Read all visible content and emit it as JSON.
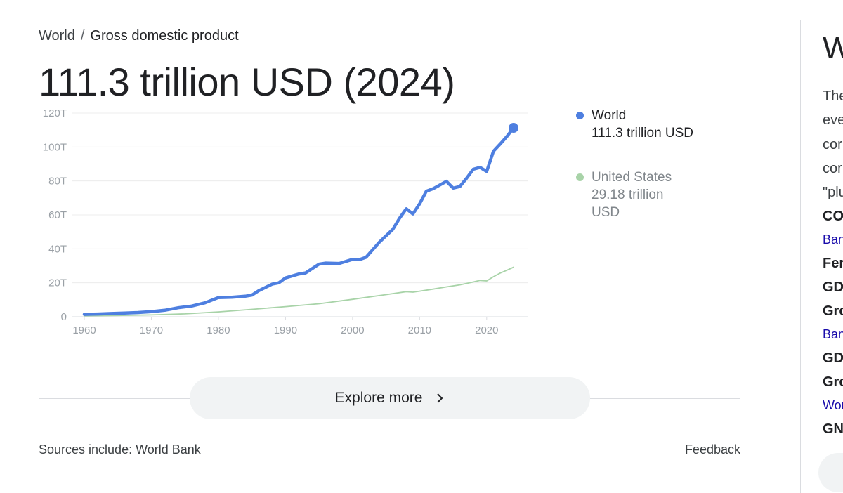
{
  "breadcrumb": {
    "root": "World",
    "separator": "/",
    "current": "Gross domestic product"
  },
  "headline": "111.3 trillion USD (2024)",
  "chart_data": {
    "type": "line",
    "title": "",
    "xlabel": "",
    "ylabel": "",
    "xlim": [
      1960,
      2024
    ],
    "ylim": [
      0,
      120
    ],
    "x_ticks": [
      1960,
      1970,
      1980,
      1990,
      2000,
      2010,
      2020
    ],
    "x_tick_labels": [
      "1960",
      "1970",
      "1980",
      "1990",
      "2000",
      "2010",
      "2020"
    ],
    "y_ticks": [
      0,
      20,
      40,
      60,
      80,
      100,
      120
    ],
    "y_tick_labels": [
      "0",
      "20T",
      "40T",
      "60T",
      "80T",
      "100T",
      "120T"
    ],
    "grid": true,
    "legend_position": "right",
    "series": [
      {
        "name": "World",
        "color": "#4e7fe0",
        "x": [
          1960,
          1962,
          1964,
          1966,
          1968,
          1970,
          1972,
          1974,
          1976,
          1978,
          1980,
          1982,
          1984,
          1985,
          1986,
          1988,
          1989,
          1990,
          1992,
          1993,
          1995,
          1996,
          1998,
          2000,
          2001,
          2002,
          2004,
          2006,
          2007,
          2008,
          2009,
          2010,
          2011,
          2012,
          2014,
          2015,
          2016,
          2017,
          2018,
          2019,
          2020,
          2021,
          2022,
          2023,
          2024
        ],
        "values": [
          1.4,
          1.6,
          1.9,
          2.2,
          2.5,
          3.0,
          3.8,
          5.3,
          6.3,
          8.2,
          11.3,
          11.5,
          12.1,
          12.8,
          15.3,
          19.2,
          20.0,
          22.9,
          25.2,
          25.8,
          31.0,
          31.6,
          31.4,
          33.8,
          33.6,
          35.0,
          44.0,
          51.5,
          58.0,
          63.6,
          60.6,
          66.5,
          74.0,
          75.4,
          79.8,
          75.8,
          76.7,
          81.6,
          86.9,
          88.0,
          85.6,
          97.5,
          101.7,
          106.2,
          111.3
        ],
        "final_label": "111.3 trillion USD",
        "final_marker": true
      },
      {
        "name": "United States",
        "color": "#a8d3a8",
        "x": [
          1960,
          1965,
          1970,
          1975,
          1980,
          1985,
          1990,
          1995,
          2000,
          2005,
          2008,
          2009,
          2010,
          2012,
          2014,
          2016,
          2018,
          2019,
          2020,
          2021,
          2022,
          2023,
          2024
        ],
        "values": [
          0.54,
          0.74,
          1.07,
          1.68,
          2.86,
          4.34,
          5.96,
          7.64,
          10.25,
          13.04,
          14.77,
          14.48,
          15.05,
          16.25,
          17.6,
          18.8,
          20.5,
          21.4,
          21.1,
          23.6,
          25.7,
          27.4,
          29.18
        ],
        "final_label": "29.18 trillion USD"
      }
    ]
  },
  "legend": [
    {
      "name": "World",
      "value": "111.3 trillion USD",
      "color": "#4e7fe0"
    },
    {
      "name": "United States",
      "value": "29.18 trillion USD",
      "color": "#a8d3a8"
    }
  ],
  "explore_button": {
    "label": "Explore more"
  },
  "sources": "Sources include: World Bank",
  "feedback": "Feedback",
  "side_panel": {
    "title": "W",
    "lines": [
      {
        "text": "The",
        "style": "text"
      },
      {
        "text": "eve",
        "style": "text"
      },
      {
        "text": "cor",
        "style": "text"
      },
      {
        "text": "cor",
        "style": "text"
      },
      {
        "text": "\"plu",
        "style": "text"
      },
      {
        "text": "CO",
        "style": "bold"
      },
      {
        "text": "Ban",
        "style": "link"
      },
      {
        "text": "Fer",
        "style": "bold"
      },
      {
        "text": "GD",
        "style": "bold"
      },
      {
        "text": "Gro",
        "style": "bold"
      },
      {
        "text": "Ban",
        "style": "link"
      },
      {
        "text": "GD",
        "style": "bold"
      },
      {
        "text": "Gro",
        "style": "bold"
      },
      {
        "text": "Wor",
        "style": "link"
      },
      {
        "text": "GN",
        "style": "bold"
      }
    ]
  }
}
